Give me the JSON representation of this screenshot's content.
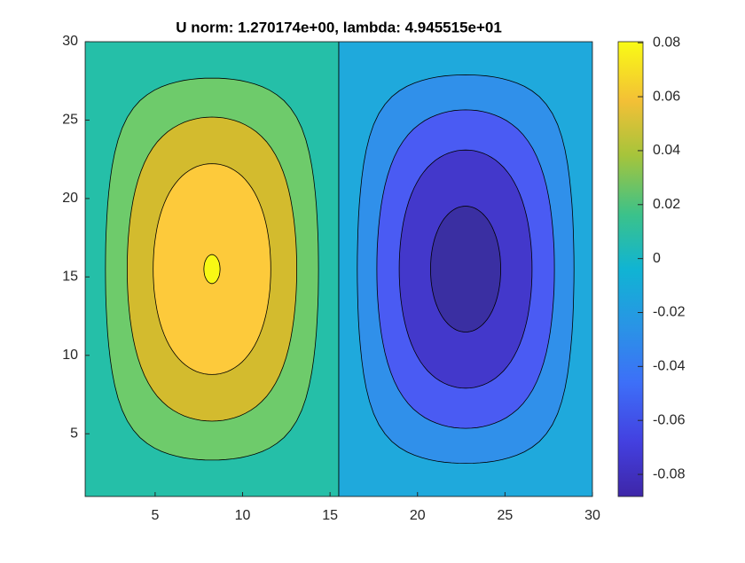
{
  "chart_data": {
    "type": "contour",
    "title": "U norm: 1.270174e+00, lambda: 4.945515e+01",
    "xlim": [
      1,
      30
    ],
    "ylim": [
      1,
      30
    ],
    "xticks": [
      5,
      10,
      15,
      20,
      25,
      30
    ],
    "yticks": [
      5,
      10,
      15,
      20,
      25,
      30
    ],
    "zlim": [
      -0.0882,
      0.0804
    ],
    "levels": [
      -0.08,
      -0.06,
      -0.04,
      -0.02,
      0,
      0.02,
      0.04,
      0.06,
      0.08
    ],
    "band_colors": [
      "#3a2fa2",
      "#4338cb",
      "#4a5bf3",
      "#3090ea",
      "#1fa9dc",
      "#25bfa8",
      "#6ecb6b",
      "#d3bb2e",
      "#fdca3b",
      "#f8f814"
    ],
    "colorbar_ticks": [
      -0.08,
      -0.06,
      -0.04,
      -0.02,
      0,
      0.02,
      0.04,
      0.06,
      0.08
    ]
  }
}
